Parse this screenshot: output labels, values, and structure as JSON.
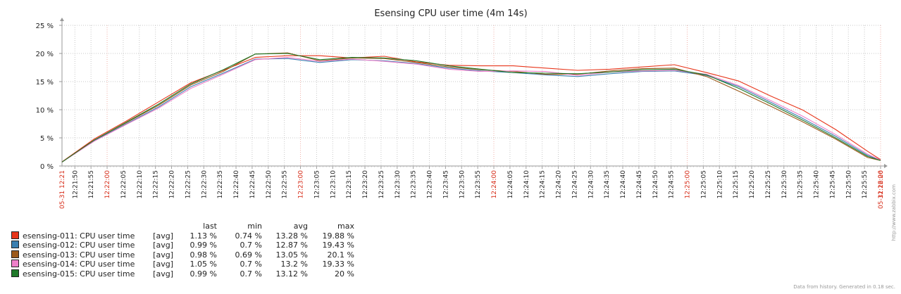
{
  "chart_data": {
    "type": "line",
    "title": "Esensing CPU user time (4m 14s)",
    "xlabel": "",
    "ylabel": "",
    "ylim": [
      0,
      25
    ],
    "yticks": [
      "0 %",
      "5 %",
      "10 %",
      "15 %",
      "20 %",
      "25 %"
    ],
    "grid": true,
    "legend_position": "bottom-left",
    "x_start_label": "05-31 12:21",
    "x_end_label": "05-31 12:26",
    "xtick_labels": [
      {
        "t": "12:21:50",
        "red": false
      },
      {
        "t": "12:21:55",
        "red": false
      },
      {
        "t": "12:22:00",
        "red": true
      },
      {
        "t": "12:22:05",
        "red": false
      },
      {
        "t": "12:22:10",
        "red": false
      },
      {
        "t": "12:22:15",
        "red": false
      },
      {
        "t": "12:22:20",
        "red": false
      },
      {
        "t": "12:22:25",
        "red": false
      },
      {
        "t": "12:22:30",
        "red": false
      },
      {
        "t": "12:22:35",
        "red": false
      },
      {
        "t": "12:22:40",
        "red": false
      },
      {
        "t": "12:22:45",
        "red": false
      },
      {
        "t": "12:22:50",
        "red": false
      },
      {
        "t": "12:22:55",
        "red": false
      },
      {
        "t": "12:23:00",
        "red": true
      },
      {
        "t": "12:23:05",
        "red": false
      },
      {
        "t": "12:23:10",
        "red": false
      },
      {
        "t": "12:23:15",
        "red": false
      },
      {
        "t": "12:23:20",
        "red": false
      },
      {
        "t": "12:23:25",
        "red": false
      },
      {
        "t": "12:23:30",
        "red": false
      },
      {
        "t": "12:23:35",
        "red": false
      },
      {
        "t": "12:23:40",
        "red": false
      },
      {
        "t": "12:23:45",
        "red": false
      },
      {
        "t": "12:23:50",
        "red": false
      },
      {
        "t": "12:23:55",
        "red": false
      },
      {
        "t": "12:24:00",
        "red": true
      },
      {
        "t": "12:24:05",
        "red": false
      },
      {
        "t": "12:24:10",
        "red": false
      },
      {
        "t": "12:24:15",
        "red": false
      },
      {
        "t": "12:24:20",
        "red": false
      },
      {
        "t": "12:24:25",
        "red": false
      },
      {
        "t": "12:24:30",
        "red": false
      },
      {
        "t": "12:24:35",
        "red": false
      },
      {
        "t": "12:24:40",
        "red": false
      },
      {
        "t": "12:24:45",
        "red": false
      },
      {
        "t": "12:24:50",
        "red": false
      },
      {
        "t": "12:24:55",
        "red": false
      },
      {
        "t": "12:25:00",
        "red": true
      },
      {
        "t": "12:25:05",
        "red": false
      },
      {
        "t": "12:25:10",
        "red": false
      },
      {
        "t": "12:25:15",
        "red": false
      },
      {
        "t": "12:25:20",
        "red": false
      },
      {
        "t": "12:25:25",
        "red": false
      },
      {
        "t": "12:25:30",
        "red": false
      },
      {
        "t": "12:25:35",
        "red": false
      },
      {
        "t": "12:25:40",
        "red": false
      },
      {
        "t": "12:25:45",
        "red": false
      },
      {
        "t": "12:25:50",
        "red": false
      },
      {
        "t": "12:25:55",
        "red": false
      },
      {
        "t": "12:26:00",
        "red": true
      }
    ],
    "x_seconds": [
      0,
      10,
      20,
      30,
      40,
      50,
      60,
      70,
      80,
      90,
      100,
      110,
      120,
      130,
      140,
      150,
      160,
      170,
      180,
      190,
      200,
      210,
      220,
      230,
      240,
      250,
      254
    ],
    "series": [
      {
        "name": "esensing-011: CPU user time",
        "color": "#e8351a",
        "values": [
          0.74,
          4.8,
          8.0,
          11.4,
          14.8,
          17.0,
          19.3,
          19.6,
          19.6,
          19.2,
          19.5,
          18.5,
          17.9,
          17.8,
          17.8,
          17.4,
          17.0,
          17.2,
          17.6,
          18.0,
          16.6,
          15.1,
          12.4,
          9.9,
          6.5,
          2.6,
          1.13
        ]
      },
      {
        "name": "esensing-012: CPU user time",
        "color": "#3a7fb0",
        "values": [
          0.7,
          4.5,
          7.5,
          10.5,
          14.1,
          16.5,
          19.0,
          19.1,
          18.4,
          18.9,
          18.7,
          18.2,
          17.4,
          16.9,
          16.6,
          16.2,
          15.9,
          16.4,
          16.8,
          16.9,
          16.1,
          14.1,
          11.3,
          8.4,
          5.3,
          1.9,
          0.99
        ]
      },
      {
        "name": "esensing-013: CPU user time",
        "color": "#9c5a1c",
        "values": [
          0.69,
          4.6,
          7.7,
          10.8,
          14.4,
          16.8,
          19.9,
          20.1,
          18.7,
          19.2,
          19.1,
          18.4,
          17.6,
          17.1,
          16.8,
          16.3,
          16.3,
          16.9,
          17.3,
          17.4,
          15.9,
          13.3,
          10.6,
          7.8,
          4.8,
          1.5,
          0.98
        ]
      },
      {
        "name": "esensing-014: CPU user time",
        "color": "#ee7fc9",
        "values": [
          0.7,
          4.4,
          7.4,
          10.3,
          13.8,
          16.3,
          18.9,
          19.3,
          18.6,
          19.0,
          18.6,
          18.1,
          17.2,
          16.8,
          16.9,
          16.8,
          16.1,
          16.7,
          16.9,
          17.0,
          16.3,
          14.3,
          11.6,
          8.8,
          5.6,
          2.1,
          1.05
        ]
      },
      {
        "name": "esensing-015: CPU user time",
        "color": "#1f7a2a",
        "values": [
          0.7,
          4.6,
          7.8,
          11.0,
          14.6,
          17.1,
          19.9,
          20.0,
          18.9,
          19.3,
          19.2,
          18.7,
          17.8,
          17.2,
          16.6,
          16.5,
          16.4,
          16.7,
          17.1,
          17.2,
          16.2,
          13.8,
          11.0,
          8.1,
          5.0,
          1.7,
          0.99
        ]
      }
    ]
  },
  "legend": {
    "headers": {
      "last": "last",
      "min": "min",
      "avg": "avg",
      "max": "max"
    },
    "rows": [
      {
        "name": "esensing-011: CPU user time",
        "fn": "[avg]",
        "last": "1.13 %",
        "min": "0.74 %",
        "avg": "13.28 %",
        "max": "19.88 %",
        "color": "#e8351a"
      },
      {
        "name": "esensing-012: CPU user time",
        "fn": "[avg]",
        "last": "0.99 %",
        "min": "0.7 %",
        "avg": "12.87 %",
        "max": "19.43 %",
        "color": "#3a7fb0"
      },
      {
        "name": "esensing-013: CPU user time",
        "fn": "[avg]",
        "last": "0.98 %",
        "min": "0.69 %",
        "avg": "13.05 %",
        "max": "20.1 %",
        "color": "#9c5a1c"
      },
      {
        "name": "esensing-014: CPU user time",
        "fn": "[avg]",
        "last": "1.05 %",
        "min": "0.7 %",
        "avg": "13.2 %",
        "max": "19.33 %",
        "color": "#ee7fc9"
      },
      {
        "name": "esensing-015: CPU user time",
        "fn": "[avg]",
        "last": "0.99 %",
        "min": "0.7 %",
        "avg": "13.12 %",
        "max": "20 %",
        "color": "#1f7a2a"
      }
    ]
  },
  "footer": "Data from history. Generated in 0.18 sec.",
  "watermark": "http://www.zabbix.com"
}
